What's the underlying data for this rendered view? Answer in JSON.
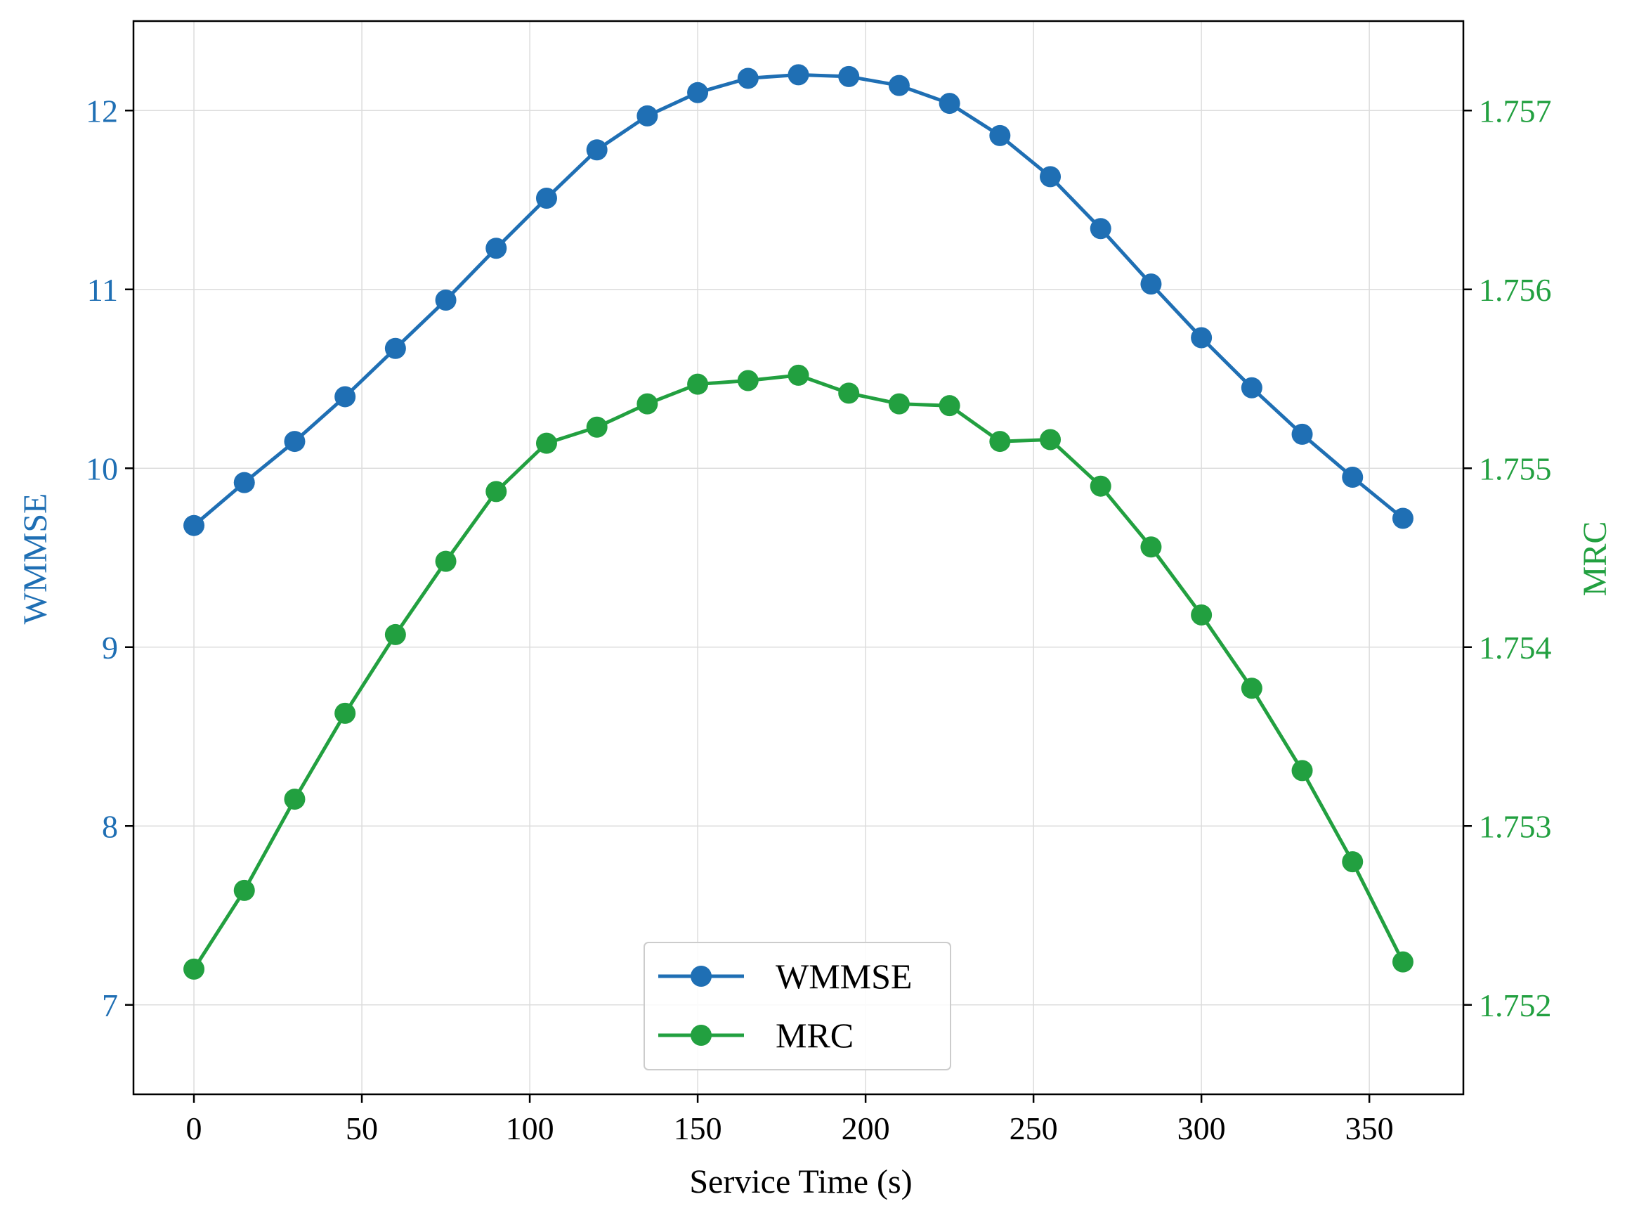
{
  "chart_data": {
    "type": "line",
    "xlabel": "Service Time (s)",
    "ylabel_left": "WMMSE",
    "ylabel_right": "MRC",
    "xlim": [
      -18,
      378
    ],
    "ylim_left": [
      6.5,
      12.5
    ],
    "ylim_right": [
      1.7515,
      1.7575
    ],
    "x_ticks": [
      0,
      50,
      100,
      150,
      200,
      250,
      300,
      350
    ],
    "y_ticks_left": [
      7,
      8,
      9,
      10,
      11,
      12
    ],
    "y_ticks_right": [
      1.752,
      1.753,
      1.754,
      1.755,
      1.756,
      1.757
    ],
    "y_tick_labels_right": [
      "1.752",
      "1.753",
      "1.754",
      "1.755",
      "1.756",
      "1.757"
    ],
    "grid": true,
    "legend_position": "bottom-center",
    "colors": {
      "left_axis": "#1f6fb4",
      "right_axis": "#22a040"
    },
    "x": [
      0,
      15,
      30,
      45,
      60,
      75,
      90,
      105,
      120,
      135,
      150,
      165,
      180,
      195,
      210,
      225,
      240,
      255,
      270,
      285,
      300,
      315,
      330,
      345,
      360
    ],
    "series": [
      {
        "name": "WMMSE",
        "axis": "left",
        "color": "#1f6fb4",
        "values": [
          9.68,
          9.92,
          10.15,
          10.4,
          10.67,
          10.94,
          11.23,
          11.51,
          11.78,
          11.97,
          12.1,
          12.18,
          12.2,
          12.19,
          12.14,
          12.04,
          11.86,
          11.63,
          11.34,
          11.03,
          10.73,
          10.45,
          10.19,
          9.95,
          9.72
        ]
      },
      {
        "name": "MRC",
        "axis": "right",
        "color": "#22a040",
        "values": [
          1.7522,
          1.75264,
          1.75315,
          1.75363,
          1.75407,
          1.75448,
          1.75487,
          1.75514,
          1.75523,
          1.75536,
          1.75547,
          1.75549,
          1.75552,
          1.75542,
          1.75536,
          1.75535,
          1.75515,
          1.75516,
          1.7549,
          1.75456,
          1.75418,
          1.75377,
          1.75331,
          1.7528,
          1.75224
        ]
      }
    ]
  }
}
